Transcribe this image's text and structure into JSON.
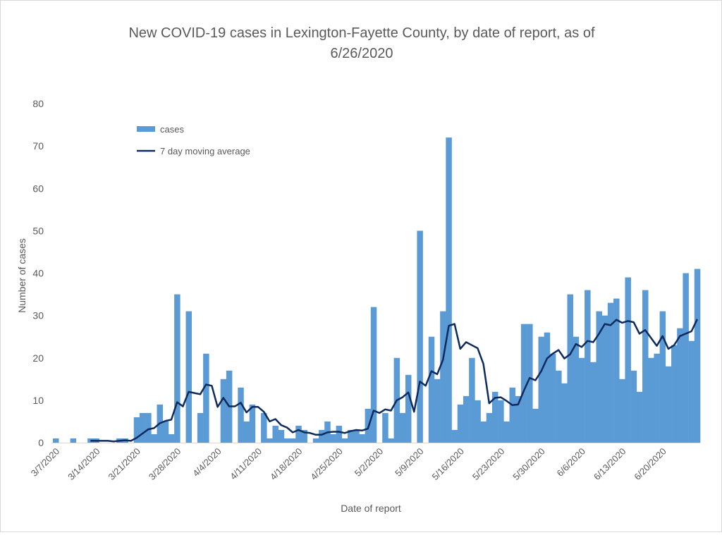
{
  "chart_data": {
    "type": "bar",
    "title": "New COVID-19 cases in Lexington-Fayette County, by date of report, as of",
    "title_line2": "6/26/2020",
    "xlabel": "Date of report",
    "ylabel": "Number of cases",
    "ylim": [
      0,
      80
    ],
    "yticks": [
      "0",
      "10",
      "20",
      "30",
      "40",
      "50",
      "60",
      "70",
      "80"
    ],
    "grid": false,
    "legend_position": "top-left",
    "start_date": "3/7/2020",
    "end_date": "6/26/2020",
    "xtick_labels": [
      "3/7/2020",
      "3/14/2020",
      "3/21/2020",
      "3/28/2020",
      "4/4/2020",
      "4/11/2020",
      "4/18/2020",
      "4/25/2020",
      "5/2/2020",
      "5/9/2020",
      "5/16/2020",
      "5/23/2020",
      "5/30/2020",
      "6/6/2020",
      "6/13/2020",
      "6/20/2020"
    ],
    "xtick_every_days": 7,
    "series": [
      {
        "name": "cases",
        "type": "bar",
        "color": "#5b9bd5",
        "values": [
          1,
          0,
          0,
          1,
          0,
          0,
          1,
          1,
          0,
          0,
          0,
          1,
          1,
          0,
          6,
          7,
          7,
          2,
          9,
          5,
          2,
          35,
          0,
          31,
          0,
          7,
          21,
          0,
          0,
          15,
          17,
          0,
          13,
          5,
          9,
          0,
          7,
          1,
          4,
          3,
          1,
          1,
          4,
          3,
          0,
          1,
          3,
          5,
          2,
          4,
          1,
          3,
          3,
          2,
          8,
          32,
          0,
          7,
          1,
          20,
          7,
          16,
          0,
          50,
          0,
          25,
          15,
          31,
          72,
          3,
          9,
          11,
          20,
          10,
          5,
          7,
          12,
          10,
          5,
          13,
          11,
          28,
          28,
          8,
          25,
          26,
          21,
          17,
          14,
          35,
          25,
          20,
          36,
          19,
          31,
          30,
          33,
          34,
          15,
          39,
          17,
          12,
          36,
          20,
          21,
          31,
          18,
          23,
          27,
          40,
          24,
          41
        ]
      },
      {
        "name": "7 day moving average",
        "type": "line",
        "color": "#0e2a5e",
        "window": 7,
        "computed_from": "cases"
      }
    ]
  }
}
